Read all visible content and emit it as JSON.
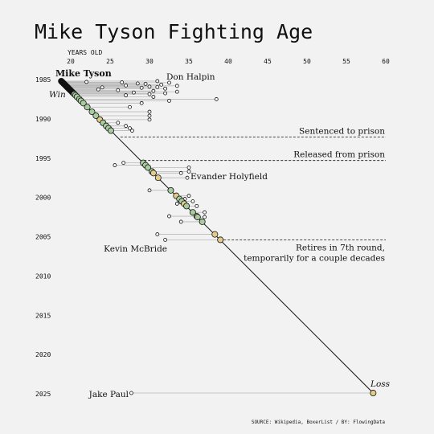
{
  "chart_data": {
    "type": "scatter",
    "title": "Mike Tyson Fighting Age",
    "xlabel": "YEARS OLD",
    "x_ticks": [
      "20",
      "25",
      "30",
      "35",
      "40",
      "45",
      "50",
      "55",
      "60"
    ],
    "y_ticks": [
      "1985",
      "1990",
      "1995",
      "2000",
      "2005",
      "2010",
      "2015",
      "2020",
      "2025"
    ],
    "xlim": [
      20,
      60
    ],
    "ylim": [
      1984,
      2025.5
    ],
    "fighter_name": "Mike Tyson",
    "result_labels": {
      "win": "Win",
      "loss": "Loss"
    },
    "legend_colors": {
      "win": "#a8cba0",
      "draw_nc": "#e3cc8a",
      "loss": "#e3cc8a",
      "early_dark": "#111111"
    },
    "fights": [
      {
        "year": 1985.2,
        "tyson_age": 18.8,
        "opp_age": 31.0,
        "result": "win"
      },
      {
        "year": 1985.3,
        "tyson_age": 18.9,
        "opp_age": 22.0,
        "result": "win"
      },
      {
        "year": 1985.35,
        "tyson_age": 18.95,
        "opp_age": 26.5,
        "result": "win"
      },
      {
        "year": 1985.4,
        "tyson_age": 19.0,
        "opp_age": 32.5,
        "result": "win"
      },
      {
        "year": 1985.5,
        "tyson_age": 19.1,
        "opp_age": 28.5,
        "result": "win"
      },
      {
        "year": 1985.55,
        "tyson_age": 19.15,
        "opp_age": 29.5,
        "result": "win"
      },
      {
        "year": 1985.65,
        "tyson_age": 19.25,
        "opp_age": 31.5,
        "result": "win"
      },
      {
        "year": 1985.75,
        "tyson_age": 19.35,
        "opp_age": 27.0,
        "result": "win"
      },
      {
        "year": 1985.8,
        "tyson_age": 19.4,
        "opp_age": 33.5,
        "result": "win"
      },
      {
        "year": 1985.9,
        "tyson_age": 19.5,
        "opp_age": 30.0,
        "result": "win"
      },
      {
        "year": 1985.95,
        "tyson_age": 19.55,
        "opp_age": 31.0,
        "result": "win"
      },
      {
        "year": 1986.0,
        "tyson_age": 19.6,
        "opp_age": 24.0,
        "result": "win"
      },
      {
        "year": 1986.05,
        "tyson_age": 19.65,
        "opp_age": 29.0,
        "result": "win"
      },
      {
        "year": 1986.15,
        "tyson_age": 19.75,
        "opp_age": 32.0,
        "result": "win"
      },
      {
        "year": 1986.25,
        "tyson_age": 19.85,
        "opp_age": 23.5,
        "result": "win"
      },
      {
        "year": 1986.35,
        "tyson_age": 19.95,
        "opp_age": 26.0,
        "result": "win"
      },
      {
        "year": 1986.45,
        "tyson_age": 20.05,
        "opp_age": 30.5,
        "result": "win"
      },
      {
        "year": 1986.55,
        "tyson_age": 20.15,
        "opp_age": 33.5,
        "result": "win"
      },
      {
        "year": 1986.65,
        "tyson_age": 20.25,
        "opp_age": 28.0,
        "result": "win"
      },
      {
        "year": 1986.75,
        "tyson_age": 20.35,
        "opp_age": 32.0,
        "result": "win"
      },
      {
        "year": 1986.85,
        "tyson_age": 20.45,
        "opp_age": 30.0,
        "result": "win"
      },
      {
        "year": 1987.0,
        "tyson_age": 20.6,
        "opp_age": 27.0,
        "result": "win"
      },
      {
        "year": 1987.2,
        "tyson_age": 20.8,
        "opp_age": 30.5,
        "result": "win"
      },
      {
        "year": 1987.5,
        "tyson_age": 21.1,
        "opp_age": 38.5,
        "result": "win"
      },
      {
        "year": 1987.7,
        "tyson_age": 21.3,
        "opp_age": 32.5,
        "result": "win"
      },
      {
        "year": 1988.0,
        "tyson_age": 21.6,
        "opp_age": 29.0,
        "result": "win"
      },
      {
        "year": 1988.5,
        "tyson_age": 22.1,
        "opp_age": 27.5,
        "result": "win"
      },
      {
        "year": 1989.1,
        "tyson_age": 22.7,
        "opp_age": 30.0,
        "result": "win"
      },
      {
        "year": 1989.6,
        "tyson_age": 23.2,
        "opp_age": 30.0,
        "result": "win"
      },
      {
        "year": 1990.1,
        "tyson_age": 23.7,
        "opp_age": 30.0,
        "result": "loss"
      },
      {
        "year": 1990.5,
        "tyson_age": 24.1,
        "opp_age": 26.0,
        "result": "win"
      },
      {
        "year": 1990.9,
        "tyson_age": 24.5,
        "opp_age": 27.0,
        "result": "win"
      },
      {
        "year": 1991.2,
        "tyson_age": 24.8,
        "opp_age": 27.5,
        "result": "win"
      },
      {
        "year": 1991.5,
        "tyson_age": 25.1,
        "opp_age": 27.8,
        "result": "win"
      },
      {
        "year": 1995.6,
        "tyson_age": 29.2,
        "opp_age": 26.7,
        "result": "win"
      },
      {
        "year": 1995.9,
        "tyson_age": 29.5,
        "opp_age": 25.6,
        "result": "win"
      },
      {
        "year": 1996.2,
        "tyson_age": 29.8,
        "opp_age": 35.0,
        "result": "win"
      },
      {
        "year": 1996.7,
        "tyson_age": 30.3,
        "opp_age": 35.0,
        "result": "win"
      },
      {
        "year": 1996.9,
        "tyson_age": 30.5,
        "opp_age": 34.0,
        "result": "loss"
      },
      {
        "year": 1997.5,
        "tyson_age": 31.1,
        "opp_age": 34.8,
        "result": "loss"
      },
      {
        "year": 1999.1,
        "tyson_age": 32.7,
        "opp_age": 30.0,
        "result": "win"
      },
      {
        "year": 1999.8,
        "tyson_age": 33.4,
        "opp_age": 35.0,
        "result": "loss"
      },
      {
        "year": 2000.2,
        "tyson_age": 33.8,
        "opp_age": 34.5,
        "result": "win"
      },
      {
        "year": 2000.5,
        "tyson_age": 34.1,
        "opp_age": 35.5,
        "result": "win"
      },
      {
        "year": 2000.8,
        "tyson_age": 34.4,
        "opp_age": 33.5,
        "result": "loss"
      },
      {
        "year": 2001.1,
        "tyson_age": 34.7,
        "opp_age": 36.0,
        "result": "win"
      },
      {
        "year": 2001.9,
        "tyson_age": 35.5,
        "opp_age": 37.0,
        "result": "win"
      },
      {
        "year": 2002.4,
        "tyson_age": 36.0,
        "opp_age": 32.5,
        "result": "loss"
      },
      {
        "year": 2002.5,
        "tyson_age": 36.1,
        "opp_age": 37.0,
        "result": "win"
      },
      {
        "year": 2003.1,
        "tyson_age": 36.7,
        "opp_age": 34.0,
        "result": "win"
      },
      {
        "year": 2004.7,
        "tyson_age": 38.3,
        "opp_age": 31.0,
        "result": "loss"
      },
      {
        "year": 2005.4,
        "tyson_age": 39.0,
        "opp_age": 32.0,
        "result": "loss"
      },
      {
        "year": 2024.9,
        "tyson_age": 58.4,
        "opp_age": 27.7,
        "result": "loss"
      }
    ],
    "events": [
      {
        "year": 1992.3,
        "label": "Sentenced to prison"
      },
      {
        "year": 1995.3,
        "label": "Released from prison"
      },
      {
        "year": 2005.4,
        "label_lines": [
          "Retires in 7th round,",
          "temporarily for a couple decades"
        ]
      }
    ],
    "opponent_labels": [
      {
        "name": "Don Halpin"
      },
      {
        "name": "Evander Holyfield"
      },
      {
        "name": "Kevin McBride"
      },
      {
        "name": "Jake Paul"
      }
    ],
    "source": "SOURCE: Wikipedia, BoxerList / BY: FlowingData"
  }
}
